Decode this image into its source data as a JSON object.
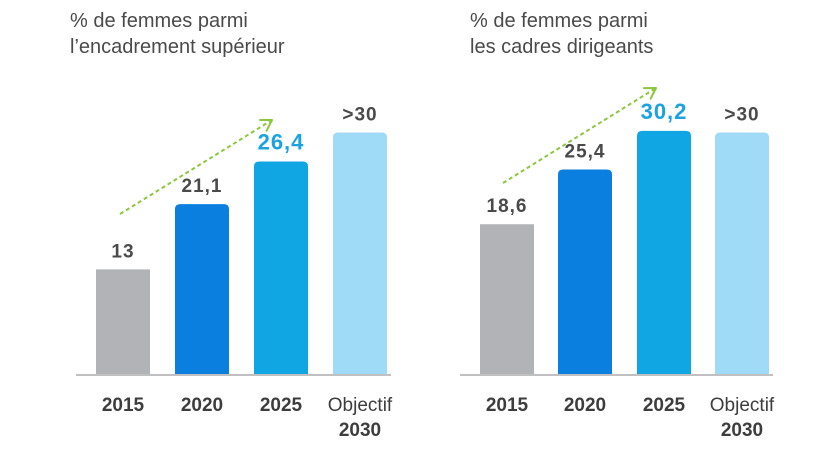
{
  "chart_data": [
    {
      "type": "bar",
      "title_lines": [
        "% de femmes parmi",
        "l’encadrement supérieur"
      ],
      "categories": [
        "2015",
        "2020",
        "2025",
        "Objectif 2030"
      ],
      "category_lines": [
        [
          "2015"
        ],
        [
          "2020"
        ],
        [
          "2025"
        ],
        [
          "Objectif",
          "2030"
        ]
      ],
      "values": [
        13,
        21.1,
        26.4,
        30
      ],
      "data_labels": [
        "13",
        "21,1",
        "26,4",
        ">30"
      ],
      "bar_colors": [
        "#b1b3b6",
        "#0a7fe0",
        "#0fa6e3",
        "#9fdbf6"
      ],
      "label_colors": [
        "#4a4a4a",
        "#4a4a4a",
        "#1aa3e0",
        "#4a4a4a"
      ],
      "ylim": [
        0,
        39
      ],
      "trend_arrow": true,
      "arrow_color": "#8dc63f"
    },
    {
      "type": "bar",
      "title_lines": [
        "% de femmes parmi",
        "les cadres dirigeants"
      ],
      "categories": [
        "2015",
        "2020",
        "2025",
        "Objectif 2030"
      ],
      "category_lines": [
        [
          "2015"
        ],
        [
          "2020"
        ],
        [
          "2025"
        ],
        [
          "Objectif",
          "2030"
        ]
      ],
      "values": [
        18.6,
        25.4,
        30.2,
        30
      ],
      "data_labels": [
        "18,6",
        "25,4",
        "30,2",
        ">30"
      ],
      "bar_colors": [
        "#b1b3b6",
        "#0a7fe0",
        "#0fa6e3",
        "#9fdbf6"
      ],
      "label_colors": [
        "#4a4a4a",
        "#4a4a4a",
        "#1aa3e0",
        "#4a4a4a"
      ],
      "ylim": [
        0,
        39
      ],
      "trend_arrow": true,
      "arrow_color": "#8dc63f"
    }
  ]
}
